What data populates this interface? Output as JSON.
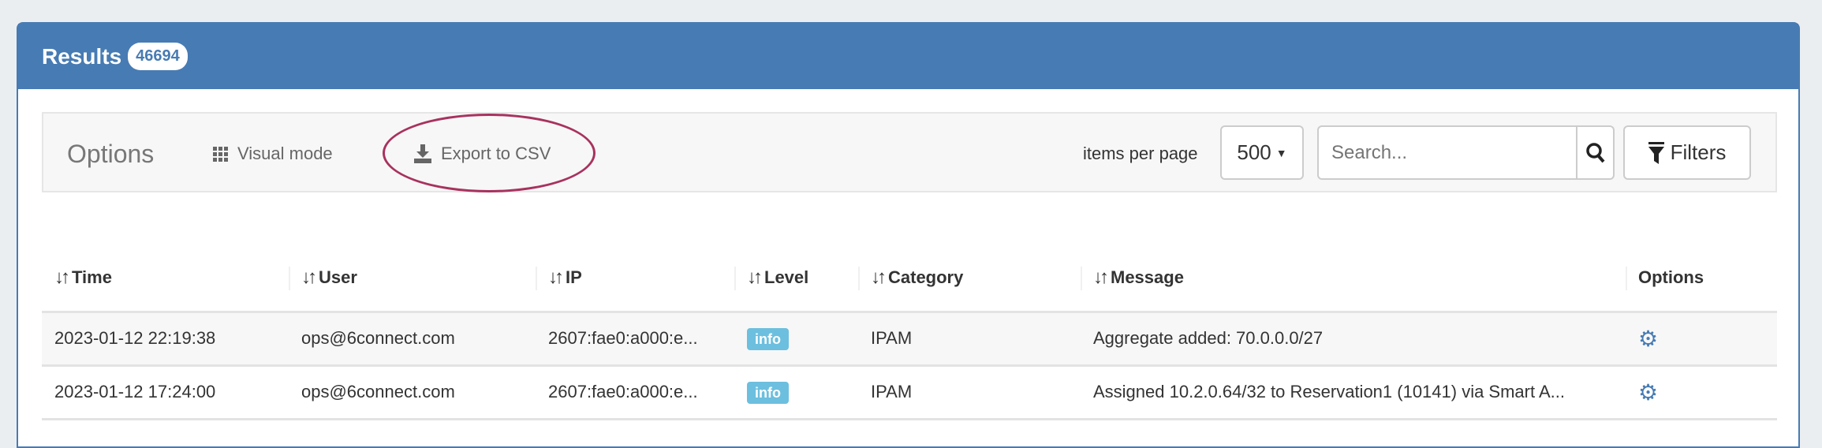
{
  "header": {
    "title": "Results",
    "count": "46694"
  },
  "options": {
    "label": "Options",
    "visual_mode": "Visual mode",
    "export_csv": "Export to CSV",
    "items_per_page_label": "items per page",
    "items_per_page": "500",
    "search_placeholder": "Search...",
    "filters": "Filters"
  },
  "table": {
    "columns": [
      "Time",
      "User",
      "IP",
      "Level",
      "Category",
      "Message",
      "Options"
    ],
    "rows": [
      {
        "time": "2023-01-12 22:19:38",
        "user": "ops@6connect.com",
        "ip": "2607:fae0:a000:e...",
        "level": "info",
        "category": "IPAM",
        "message": "Aggregate added: 70.0.0.0/27"
      },
      {
        "time": "2023-01-12 17:24:00",
        "user": "ops@6connect.com",
        "ip": "2607:fae0:a000:e...",
        "level": "info",
        "category": "IPAM",
        "message": "Assigned 10.2.0.64/32 to Reservation1 (10141) via Smart A..."
      }
    ]
  },
  "colors": {
    "header": "#477bb3",
    "info_badge": "#6cbfde",
    "annotation_circle": "#a8325e",
    "gear": "#477bb3"
  }
}
